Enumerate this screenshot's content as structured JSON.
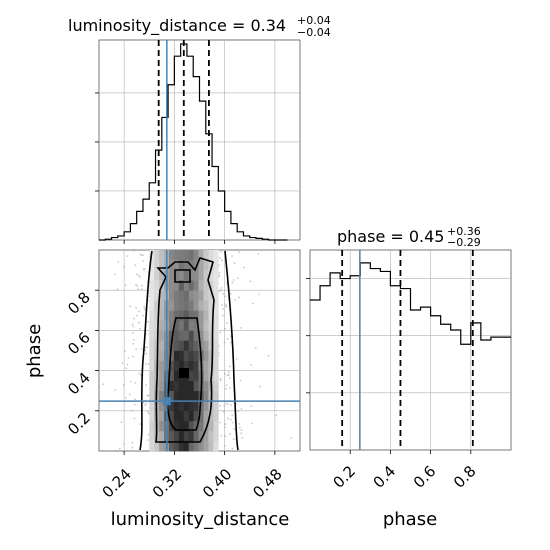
{
  "chart_data": {
    "type": "corner",
    "panels": [
      {
        "id": "luminosity_distance_hist",
        "type": "histogram",
        "title": "luminosity_distance = 0.34",
        "title_upper": "+0.04",
        "title_lower": "−0.04",
        "xlim": [
          0.2,
          0.52
        ],
        "bin_edges": [
          0.2,
          0.21,
          0.22,
          0.23,
          0.24,
          0.25,
          0.26,
          0.27,
          0.28,
          0.29,
          0.3,
          0.31,
          0.32,
          0.33,
          0.34,
          0.35,
          0.36,
          0.37,
          0.38,
          0.39,
          0.4,
          0.41,
          0.42,
          0.43,
          0.44,
          0.45,
          0.46,
          0.47,
          0.48,
          0.49,
          0.5
        ],
        "counts": [
          0,
          1,
          3,
          5,
          10,
          20,
          35,
          50,
          70,
          110,
          150,
          190,
          225,
          240,
          225,
          200,
          170,
          130,
          90,
          60,
          35,
          20,
          10,
          5,
          3,
          2,
          1,
          0,
          0,
          0
        ],
        "quantiles": [
          0.295,
          0.335,
          0.375
        ],
        "truth": 0.308,
        "grid": true
      },
      {
        "id": "phase_hist",
        "type": "histogram",
        "title": "phase = 0.45",
        "title_upper": "+0.36",
        "title_lower": "−0.29",
        "xlim": [
          0.0,
          1.0
        ],
        "bin_edges": [
          0.0,
          0.05,
          0.1,
          0.15,
          0.2,
          0.25,
          0.3,
          0.35,
          0.4,
          0.45,
          0.5,
          0.55,
          0.6,
          0.65,
          0.7,
          0.75,
          0.8,
          0.85,
          0.9,
          0.95,
          1.0
        ],
        "counts": [
          105,
          115,
          124,
          120,
          122,
          131,
          127,
          125,
          115,
          113,
          98,
          100,
          94,
          88,
          84,
          74,
          89,
          77,
          79,
          79
        ],
        "quantiles": [
          0.16,
          0.45,
          0.81
        ],
        "truth": 0.248,
        "grid": true
      },
      {
        "id": "joint",
        "type": "2d-density",
        "xlabel": "luminosity_distance",
        "ylabel": "phase",
        "xlim": [
          0.2,
          0.52
        ],
        "ylim": [
          0.0,
          1.0
        ],
        "xticks": [
          "0.24",
          "0.32",
          "0.40",
          "0.48"
        ],
        "xtick_values": [
          0.24,
          0.32,
          0.4,
          0.48
        ],
        "yticks": [
          "0.2",
          "0.4",
          "0.6",
          "0.8"
        ],
        "ytick_values": [
          0.2,
          0.4,
          0.6,
          0.8
        ],
        "truth": [
          0.308,
          0.248
        ],
        "grid": true
      },
      {
        "id": "phase_axis",
        "xlabel": "phase",
        "xticks": [
          "0.2",
          "0.4",
          "0.6",
          "0.8"
        ],
        "xtick_values": [
          0.2,
          0.4,
          0.6,
          0.8
        ]
      }
    ],
    "colors": {
      "truth": "#4682b4",
      "hist": "#000000",
      "scatter": "#9a9a9a",
      "grid": "#b0b0b0"
    }
  }
}
